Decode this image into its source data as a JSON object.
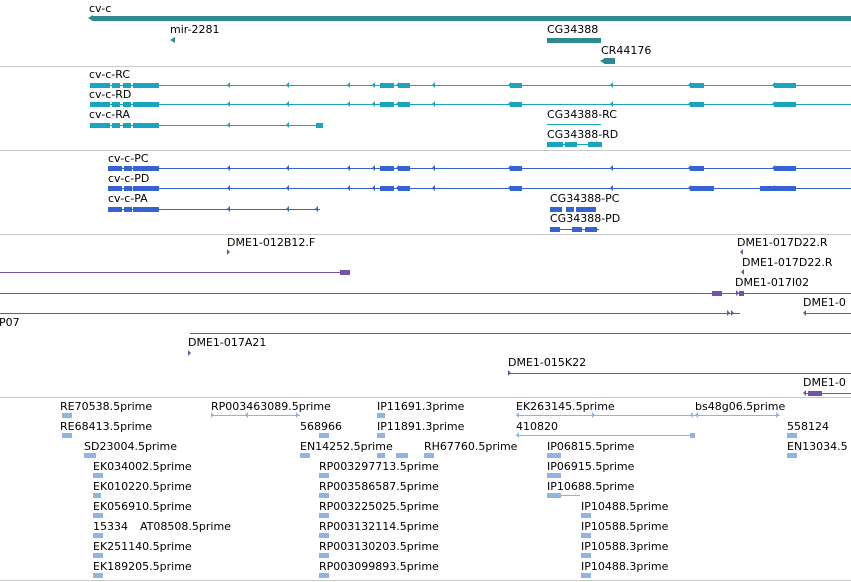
{
  "colors": {
    "gene": "#2f8a8f",
    "transcript_a": "#1aa5bf",
    "transcript_b": "#3563cf",
    "clone": "#7552a6",
    "est": "#8fb6e2",
    "divider": "#c9c9c9"
  },
  "tracks": {
    "genes": {
      "labels": [
        "cv-c",
        "mir-2281",
        "CG34388",
        "CR44176"
      ]
    },
    "transcripts": {
      "labels": [
        "cv-c-RC",
        "cv-c-RD",
        "cv-c-RA",
        "CG34388-RC",
        "CG34388-RD"
      ]
    },
    "proteins": {
      "labels": [
        "cv-c-PC",
        "cv-c-PD",
        "cv-c-PA",
        "CG34388-PC",
        "CG34388-PD"
      ]
    },
    "bac_clones": {
      "labels": [
        "DME1-012B12.F",
        "DME1-017D22.R",
        "DME1-017D22.R",
        "DME1-017I02",
        "DME1-0",
        "P07",
        "DME1-017A21",
        "DME1-015K22",
        "DME1-0"
      ]
    },
    "ests": {
      "labels": [
        "RE70538.5prime",
        "RE68413.5prime",
        "SD23004.5prime",
        "EK034002.5prime",
        "EK010220.5prime",
        "EK056910.5prime",
        "15334",
        "AT08508.5prime",
        "EK251140.5prime",
        "EK189205.5prime",
        "RP003463089.5prime",
        "568966",
        "EN14252.5prime",
        "RP003297713.5prime",
        "RP003586587.5prime",
        "RP003225025.5prime",
        "RP003132114.5prime",
        "RP003130203.5prime",
        "RP003099893.5prime",
        "IP11691.3prime",
        "IP11891.3prime",
        "RH67760.5prime",
        "EK263145.5prime",
        "410820",
        "IP06815.5prime",
        "IP06915.5prime",
        "IP10688.5prime",
        "IP10488.5prime",
        "IP10588.5prime",
        "IP10588.3prime",
        "IP10488.3prime",
        "bs48g06.5prime",
        "558124",
        "EN13034.5"
      ]
    }
  }
}
